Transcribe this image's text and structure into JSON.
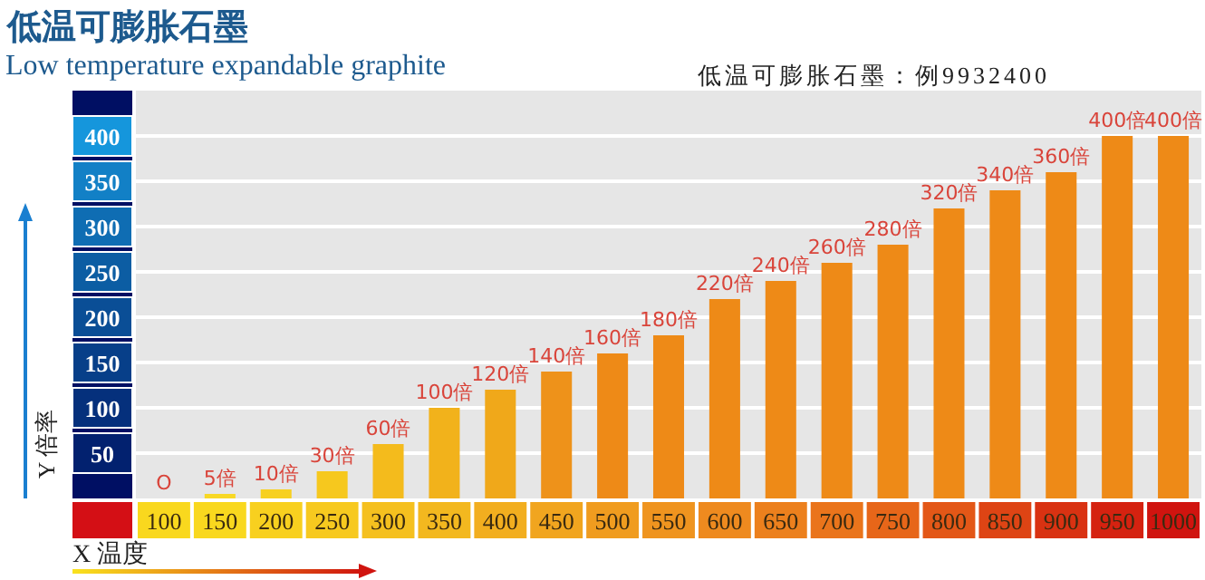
{
  "chart_data": {
    "type": "bar",
    "title": "低温可膨胀石墨",
    "subtitle": "Low temperature expandable graphite",
    "annotations": [
      "低温可膨胀石墨：例9932400"
    ],
    "xlabel": "X 温度",
    "ylabel": "Y 倍率",
    "categories": [
      "100",
      "150",
      "200",
      "250",
      "300",
      "350",
      "400",
      "450",
      "500",
      "550",
      "600",
      "650",
      "700",
      "750",
      "800",
      "850",
      "900",
      "950",
      "1000"
    ],
    "values": [
      0,
      5,
      10,
      30,
      60,
      100,
      120,
      140,
      160,
      180,
      220,
      240,
      260,
      280,
      320,
      340,
      360,
      400,
      400
    ],
    "value_labels": [
      "O",
      "5倍",
      "10倍",
      "30倍",
      "60倍",
      "100倍",
      "120倍",
      "140倍",
      "160倍",
      "180倍",
      "220倍",
      "240倍",
      "260倍",
      "280倍",
      "320倍",
      "340倍",
      "360倍",
      "400倍",
      "400倍"
    ],
    "colors": [
      "#f8d824",
      "#f8d824",
      "#f7d020",
      "#f6c81e",
      "#f4bb1c",
      "#f2b21b",
      "#f0a81a",
      "#ee921a",
      "#ee8a17",
      "#ee8a17",
      "#ee8a17",
      "#ee8a17",
      "#ee8a17",
      "#ee8a17",
      "#ee8a17",
      "#ee8a17",
      "#ee8a17",
      "#ee8a17",
      "#ee8a17"
    ],
    "ylim": [
      0,
      450
    ],
    "yticks": [
      50,
      100,
      150,
      200,
      250,
      300,
      350,
      400
    ],
    "grid": "y"
  }
}
